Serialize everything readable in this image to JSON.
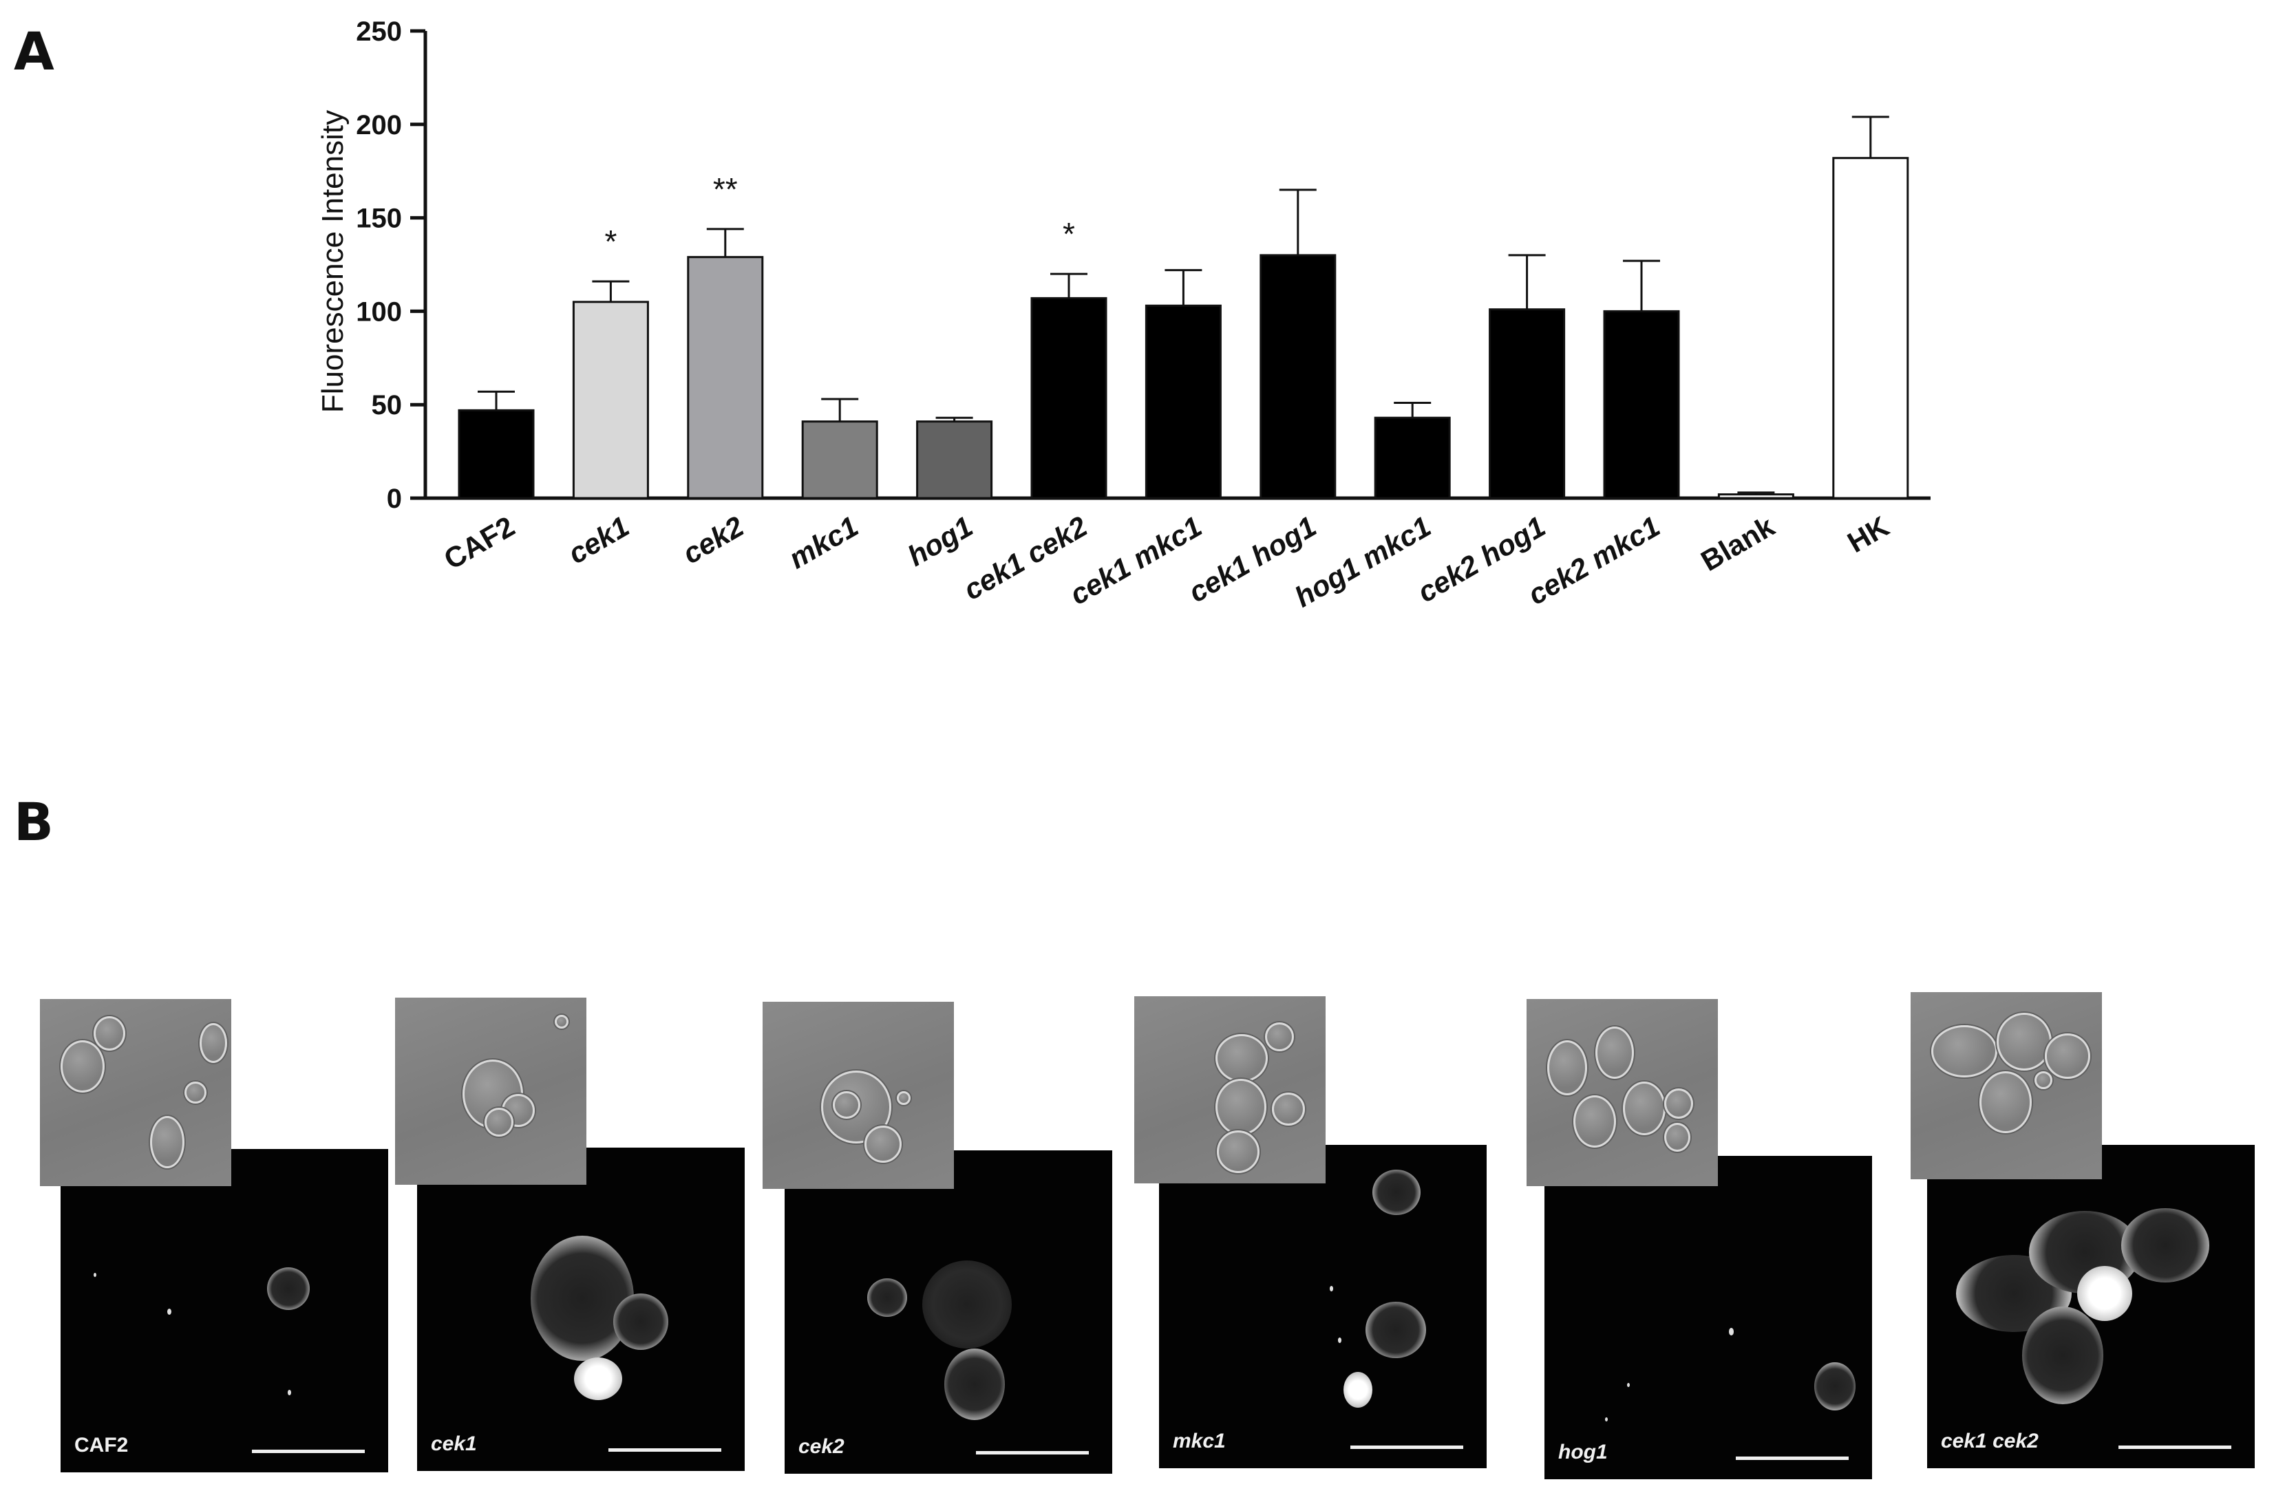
{
  "panel_a_label": "A",
  "panel_b_label": "B",
  "chart_data": {
    "type": "bar",
    "ylabel": "Fluorescence Intensity",
    "xlabel": "",
    "ylim": [
      0,
      250
    ],
    "yticks": [
      0,
      50,
      100,
      150,
      200,
      250
    ],
    "categories": [
      "CAF2",
      "cek1",
      "cek2",
      "mkc1",
      "hog1",
      "cek1 cek2",
      "cek1 mkc1",
      "cek1 hog1",
      "hog1 mkc1",
      "cek2 hog1",
      "cek2 mkc1",
      "Blank",
      "HK"
    ],
    "italic": [
      false,
      true,
      true,
      true,
      true,
      true,
      true,
      true,
      true,
      true,
      true,
      false,
      false
    ],
    "values": [
      47,
      105,
      129,
      41,
      41,
      107,
      103,
      130,
      43,
      101,
      100,
      2,
      182
    ],
    "errors": [
      10,
      11,
      15,
      12,
      2,
      13,
      19,
      35,
      8,
      29,
      27,
      1,
      22
    ],
    "colors": [
      "#000000",
      "#d8d8d8",
      "#a3a3a7",
      "#7f7f7f",
      "#626262",
      "#000000",
      "#000000",
      "#000000",
      "#000000",
      "#000000",
      "#000000",
      "#ffffff",
      "#ffffff"
    ],
    "significance": [
      "",
      "*",
      "**",
      "",
      "",
      "*",
      "",
      "",
      "",
      "",
      "",
      "",
      ""
    ],
    "grid": false,
    "legend": "none"
  },
  "micrographs": [
    {
      "label": "CAF2",
      "italic": false
    },
    {
      "label": "cek1",
      "italic": true
    },
    {
      "label": "cek2",
      "italic": true
    },
    {
      "label": "mkc1",
      "italic": true
    },
    {
      "label": "hog1",
      "italic": true
    },
    {
      "label": "cek1 cek2",
      "italic": true
    }
  ]
}
